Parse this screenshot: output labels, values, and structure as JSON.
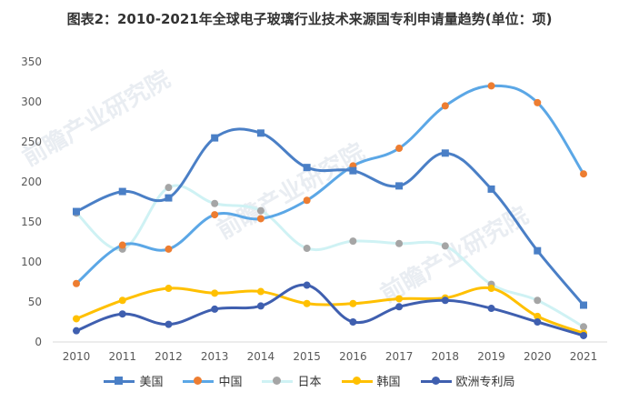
{
  "title": "图表2：2010-2021年全球电子玻璃行业技术来源国专利申请量趋势(单位：项)",
  "watermark_text": "前瞻产业研究院",
  "chart_data": {
    "type": "line",
    "title": "图表2：2010-2021年全球电子玻璃行业技术来源国专利申请量趋势(单位：项)",
    "categories": [
      "2010",
      "2011",
      "2012",
      "2013",
      "2014",
      "2015",
      "2016",
      "2017",
      "2018",
      "2019",
      "2020",
      "2021"
    ],
    "ylim": [
      0,
      350
    ],
    "yticks": [
      0,
      50,
      100,
      150,
      200,
      250,
      300,
      350
    ],
    "grid": false,
    "legend_position": "bottom",
    "smooth": true,
    "series": [
      {
        "name": "美国",
        "color": "#4A7FC6",
        "marker": "square",
        "values": [
          163,
          188,
          180,
          255,
          261,
          218,
          214,
          195,
          236,
          191,
          114,
          46
        ]
      },
      {
        "name": "中国",
        "color": "#5BA7E6",
        "marker": "circle",
        "marker_color": "#ED7D31",
        "values": [
          73,
          121,
          116,
          159,
          154,
          177,
          220,
          242,
          295,
          320,
          299,
          210
        ]
      },
      {
        "name": "日本",
        "color": "#CFF2F4",
        "marker": "circle",
        "marker_color": "#A5A5A5",
        "values": [
          161,
          116,
          193,
          173,
          164,
          117,
          126,
          123,
          120,
          72,
          52,
          19
        ]
      },
      {
        "name": "韩国",
        "color": "#FFC000",
        "marker": "circle",
        "values": [
          29,
          52,
          67,
          61,
          63,
          48,
          48,
          54,
          55,
          67,
          32,
          11
        ]
      },
      {
        "name": "欧洲专利局",
        "color": "#3F5FAF",
        "marker": "circle",
        "values": [
          14,
          35,
          22,
          41,
          45,
          71,
          25,
          44,
          52,
          42,
          25,
          8
        ]
      }
    ]
  }
}
